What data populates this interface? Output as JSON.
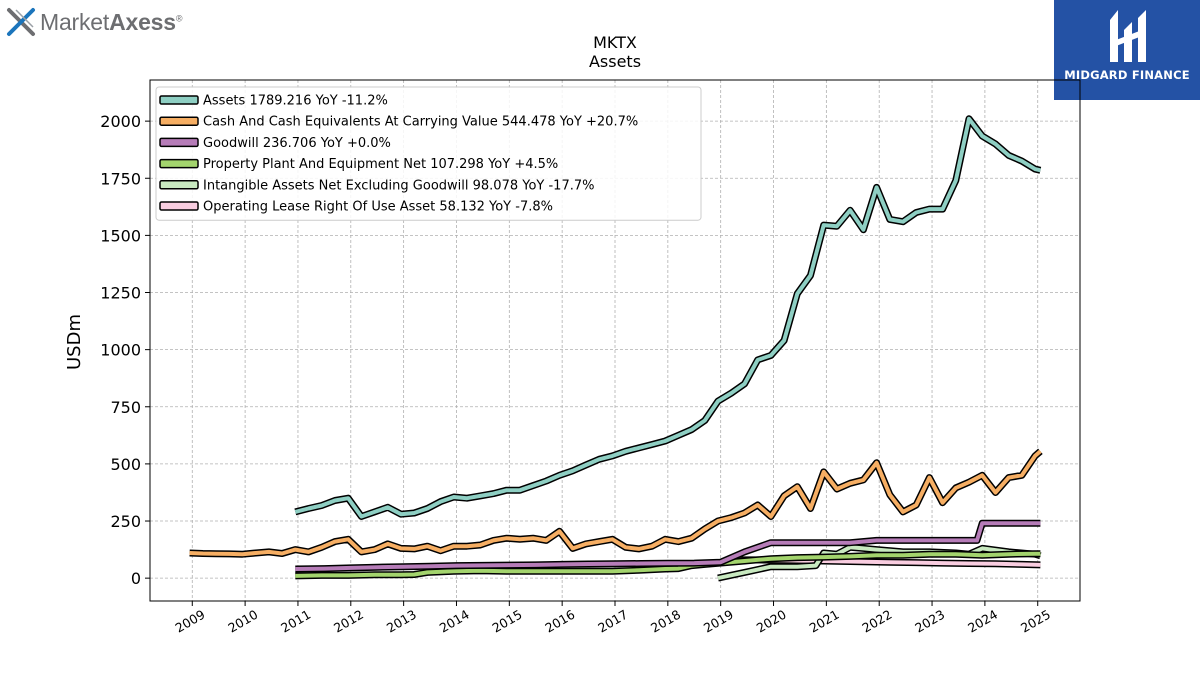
{
  "brand": {
    "logo_name_light": "Market",
    "logo_name_bold": "Axess",
    "logo_registered": "®",
    "sponsor_caption": "MIDGARD FINANCE",
    "brand_color": "#2452a5"
  },
  "chart_data": {
    "type": "line",
    "title": "MKTX",
    "subtitle": "Assets",
    "ylabel": "USDm",
    "xlabel": "",
    "xlim": [
      2008.2,
      2025.8
    ],
    "ylim": [
      -100,
      2180
    ],
    "grid": true,
    "legend_position": "top-left",
    "yticks": [
      0,
      250,
      500,
      750,
      1000,
      1250,
      1500,
      1750,
      2000
    ],
    "xticks": [
      2009,
      2010,
      2011,
      2012,
      2013,
      2014,
      2015,
      2016,
      2017,
      2018,
      2019,
      2020,
      2021,
      2022,
      2023,
      2024,
      2025
    ],
    "series": [
      {
        "name": "Assets",
        "legend": "Assets  1789.216 YoY -11.2%",
        "color": "#8ecfc3",
        "x": [
          2010.95,
          2011.2,
          2011.45,
          2011.7,
          2011.95,
          2012.2,
          2012.45,
          2012.7,
          2012.95,
          2013.2,
          2013.45,
          2013.7,
          2013.95,
          2014.2,
          2014.45,
          2014.7,
          2014.95,
          2015.2,
          2015.45,
          2015.7,
          2015.95,
          2016.2,
          2016.45,
          2016.7,
          2016.95,
          2017.2,
          2017.45,
          2017.7,
          2017.95,
          2018.2,
          2018.45,
          2018.7,
          2018.95,
          2019.2,
          2019.45,
          2019.7,
          2019.95,
          2020.2,
          2020.45,
          2020.7,
          2020.95,
          2021.2,
          2021.45,
          2021.7,
          2021.95,
          2022.2,
          2022.45,
          2022.7,
          2022.95,
          2023.2,
          2023.45,
          2023.7,
          2023.95,
          2024.2,
          2024.45,
          2024.7,
          2024.95,
          2025.05
        ],
        "y": [
          290,
          305,
          318,
          340,
          350,
          270,
          290,
          310,
          280,
          285,
          305,
          335,
          355,
          350,
          360,
          370,
          385,
          385,
          405,
          425,
          450,
          470,
          495,
          520,
          535,
          555,
          570,
          585,
          600,
          625,
          650,
          690,
          775,
          810,
          850,
          955,
          975,
          1040,
          1245,
          1325,
          1545,
          1540,
          1610,
          1525,
          1710,
          1570,
          1560,
          1600,
          1615,
          1615,
          1740,
          2010,
          1935,
          1900,
          1850,
          1825,
          1790,
          1785
        ]
      },
      {
        "name": "Cash And Cash Equivalents At Carrying Value",
        "legend": "Cash And Cash Equivalents At Carrying Value  544.478 YoY +20.7%",
        "color": "#f6ae63",
        "x": [
          2008.95,
          2009.2,
          2009.45,
          2009.7,
          2009.95,
          2010.2,
          2010.45,
          2010.7,
          2010.95,
          2011.2,
          2011.45,
          2011.7,
          2011.95,
          2012.2,
          2012.45,
          2012.7,
          2012.95,
          2013.2,
          2013.45,
          2013.7,
          2013.95,
          2014.2,
          2014.45,
          2014.7,
          2014.95,
          2015.2,
          2015.45,
          2015.7,
          2015.95,
          2016.2,
          2016.45,
          2016.7,
          2016.95,
          2017.2,
          2017.45,
          2017.7,
          2017.95,
          2018.2,
          2018.45,
          2018.7,
          2018.95,
          2019.2,
          2019.45,
          2019.7,
          2019.95,
          2020.2,
          2020.45,
          2020.7,
          2020.95,
          2021.2,
          2021.45,
          2021.7,
          2021.95,
          2022.2,
          2022.45,
          2022.7,
          2022.95,
          2023.2,
          2023.45,
          2023.7,
          2023.95,
          2024.2,
          2024.45,
          2024.7,
          2024.95,
          2025.05
        ],
        "y": [
          110,
          108,
          107,
          106,
          105,
          110,
          115,
          108,
          125,
          115,
          135,
          160,
          170,
          115,
          125,
          150,
          130,
          128,
          140,
          120,
          140,
          140,
          145,
          165,
          175,
          170,
          175,
          165,
          205,
          130,
          150,
          160,
          170,
          135,
          128,
          140,
          170,
          160,
          175,
          215,
          250,
          265,
          285,
          320,
          270,
          360,
          400,
          305,
          465,
          390,
          415,
          430,
          505,
          365,
          290,
          320,
          440,
          330,
          395,
          420,
          450,
          375,
          440,
          450,
          535,
          555
        ]
      },
      {
        "name": "Goodwill",
        "legend": "Goodwill  236.706 YoY +0.0%",
        "color": "#b67cb8",
        "x": [
          2010.95,
          2011.5,
          2012,
          2012.5,
          2013,
          2013.5,
          2014,
          2014.5,
          2015,
          2015.5,
          2016,
          2016.5,
          2017,
          2017.5,
          2018,
          2018.5,
          2019.0,
          2019.45,
          2019.95,
          2020.45,
          2020.95,
          2021.45,
          2021.95,
          2022.45,
          2022.95,
          2023.45,
          2023.85,
          2023.95,
          2024.45,
          2024.95,
          2025.05
        ],
        "y": [
          40,
          42,
          45,
          48,
          50,
          52,
          55,
          56,
          57,
          58,
          60,
          62,
          63,
          64,
          65,
          66,
          70,
          115,
          155,
          155,
          155,
          155,
          165,
          165,
          165,
          165,
          165,
          240,
          240,
          240,
          240
        ]
      },
      {
        "name": "Property Plant And Equipment Net",
        "legend": "Property Plant And Equipment Net  107.298 YoY +4.5%",
        "color": "#a3d46d",
        "x": [
          2010.95,
          2011.45,
          2011.95,
          2012.45,
          2012.95,
          2013.2,
          2013.45,
          2013.95,
          2014.45,
          2014.95,
          2015.45,
          2015.95,
          2016.45,
          2016.95,
          2017.45,
          2017.95,
          2018.2,
          2018.45,
          2018.7,
          2018.95,
          2019.45,
          2019.95,
          2020.45,
          2020.95,
          2021.45,
          2021.95,
          2022.45,
          2022.95,
          2023.45,
          2023.95,
          2024.45,
          2024.95,
          2025.05
        ],
        "y": [
          10,
          12,
          12,
          15,
          15,
          16,
          25,
          30,
          32,
          30,
          30,
          30,
          30,
          30,
          35,
          40,
          42,
          55,
          60,
          65,
          75,
          85,
          90,
          92,
          95,
          100,
          100,
          105,
          105,
          100,
          105,
          107,
          107
        ]
      },
      {
        "name": "Intangible Assets Net Excluding Goodwill",
        "legend": "Intangible Assets Net Excluding Goodwill  98.078 YoY -17.7%",
        "color": "#c8e9c0",
        "x": [
          2018.95,
          2019.45,
          2019.95,
          2020.45,
          2020.8,
          2020.95,
          2021.2,
          2021.45,
          2021.7,
          2021.95,
          2022.45,
          2022.95,
          2023.45,
          2023.7,
          2023.95,
          2024.45,
          2024.95,
          2025.05
        ],
        "y": [
          0,
          25,
          50,
          50,
          55,
          110,
          105,
          135,
          130,
          125,
          115,
          115,
          110,
          105,
          130,
          115,
          105,
          98
        ]
      },
      {
        "name": "Operating Lease Right Of Use Asset",
        "legend": "Operating Lease Right Of Use Asset  58.132 YoY -7.8%",
        "color": "#f9cde0",
        "x": [
          2019.2,
          2019.7,
          2020.2,
          2020.7,
          2021.2,
          2021.7,
          2022.2,
          2022.7,
          2023.2,
          2023.7,
          2024.2,
          2024.7,
          2025.05
        ],
        "y": [
          80,
          80,
          78,
          76,
          74,
          72,
          70,
          68,
          66,
          64,
          63,
          60,
          58
        ]
      }
    ]
  }
}
